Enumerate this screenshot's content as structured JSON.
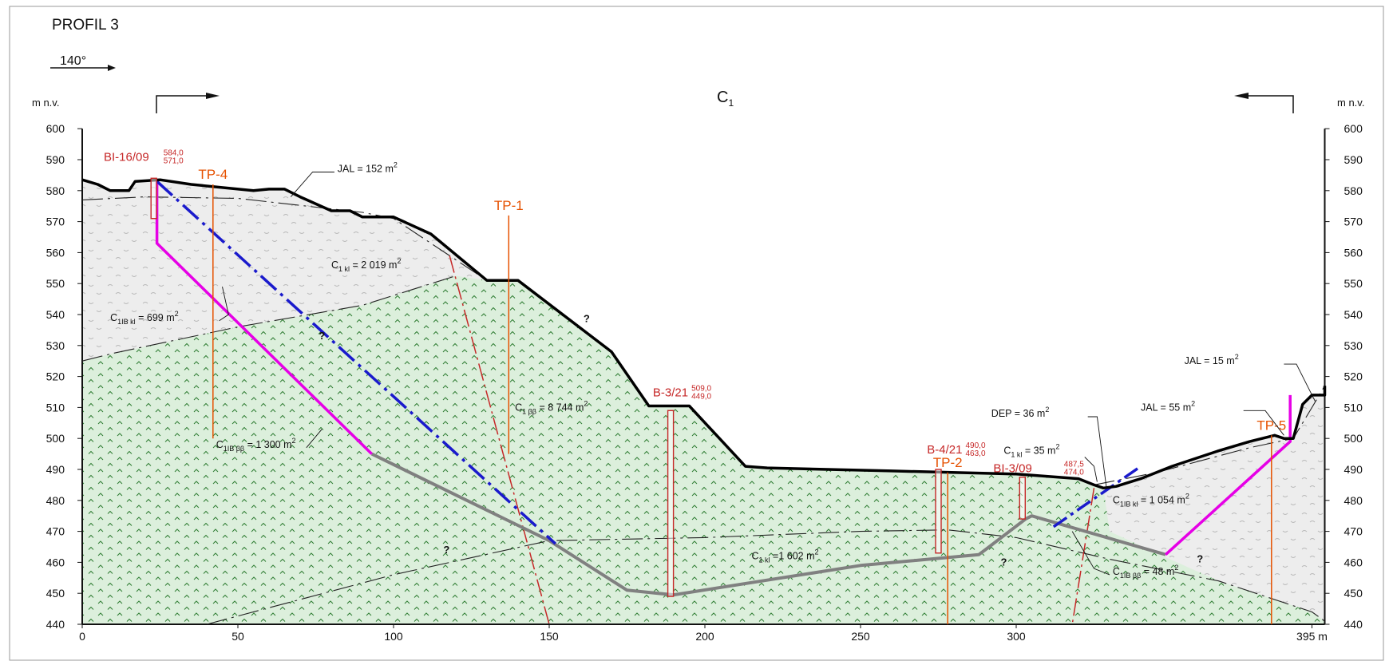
{
  "title": "PROFIL 3",
  "azimuth": "140°",
  "section_label": "C",
  "section_label_sub": "1",
  "y_unit_left": "m n.v.",
  "y_unit_right": "m n.v.",
  "x_unit": "m",
  "y_ticks": [
    440,
    450,
    460,
    470,
    480,
    490,
    500,
    510,
    520,
    530,
    540,
    550,
    560,
    570,
    580,
    590,
    600
  ],
  "x_ticks": [
    0,
    50,
    100,
    150,
    200,
    250,
    300,
    395
  ],
  "x_end_label": "395 m",
  "colors": {
    "terrain": "#000000",
    "weathered_fill": "#eeeeee",
    "rock_fill": "#d8ecd8",
    "rock_symbol": "#2e7d32",
    "boring": "#c62828",
    "test_pit": "#e65100",
    "fault": "#c62828",
    "groundwater": "#1a1acc",
    "slip_surface": "#e600e6",
    "base_surface": "#808080"
  },
  "chart_data": {
    "type": "cross-section",
    "xlim": [
      0,
      395
    ],
    "ylim": [
      440,
      600
    ],
    "terrain": [
      [
        0,
        583.5
      ],
      [
        5,
        582
      ],
      [
        9,
        580
      ],
      [
        15,
        580
      ],
      [
        17,
        583
      ],
      [
        25,
        583.5
      ],
      [
        35,
        582
      ],
      [
        55,
        580
      ],
      [
        60,
        580.5
      ],
      [
        65,
        580.5
      ],
      [
        70,
        578
      ],
      [
        80,
        573.5
      ],
      [
        86,
        573.5
      ],
      [
        90,
        571.5
      ],
      [
        100,
        571.5
      ],
      [
        112,
        566
      ],
      [
        130,
        551
      ],
      [
        140,
        551
      ],
      [
        170,
        528
      ],
      [
        182,
        510.5
      ],
      [
        195,
        510.5
      ],
      [
        213,
        491
      ],
      [
        220,
        490.5
      ],
      [
        260,
        489.5
      ],
      [
        300,
        488.5
      ],
      [
        320,
        487
      ],
      [
        325,
        485
      ],
      [
        328,
        484
      ],
      [
        332,
        484.5
      ],
      [
        340,
        487
      ],
      [
        345,
        489
      ],
      [
        350,
        491
      ],
      [
        365,
        496
      ],
      [
        375,
        499
      ],
      [
        383,
        501
      ],
      [
        386,
        500
      ],
      [
        389,
        500
      ],
      [
        392,
        511
      ],
      [
        395,
        514
      ],
      [
        400,
        514
      ],
      [
        405,
        517
      ]
    ],
    "boundary_upper": [
      [
        0,
        577
      ],
      [
        20,
        578
      ],
      [
        50,
        577.5
      ],
      [
        90,
        573
      ],
      [
        100,
        571
      ],
      [
        130,
        551
      ]
    ],
    "boundary_lower": [
      [
        0,
        525
      ],
      [
        10,
        527.5
      ],
      [
        50,
        536
      ],
      [
        90,
        543
      ],
      [
        120,
        552.5
      ]
    ],
    "boundary_base_left": [
      [
        40,
        440
      ],
      [
        100,
        456
      ],
      [
        150,
        467
      ],
      [
        200,
        468
      ],
      [
        250,
        470
      ],
      [
        278,
        470.5
      ],
      [
        300,
        468
      ],
      [
        330,
        461
      ],
      [
        365,
        454
      ],
      [
        395,
        444
      ],
      [
        400,
        441
      ]
    ],
    "boundary_right_upper": [
      [
        325,
        485
      ],
      [
        345,
        489
      ],
      [
        375,
        497
      ],
      [
        389,
        500
      ],
      [
        395,
        510
      ],
      [
        405,
        517
      ]
    ],
    "rock_region": [
      [
        0,
        525
      ],
      [
        10,
        527.5
      ],
      [
        50,
        536
      ],
      [
        90,
        543
      ],
      [
        120,
        552.5
      ],
      [
        130,
        551
      ],
      [
        140,
        551
      ],
      [
        170,
        528
      ],
      [
        182,
        510.5
      ],
      [
        195,
        510.5
      ],
      [
        213,
        491
      ],
      [
        220,
        490.5
      ],
      [
        260,
        489.5
      ],
      [
        300,
        488.5
      ],
      [
        320,
        487
      ],
      [
        325,
        485
      ],
      [
        328,
        484
      ],
      [
        330,
        470
      ],
      [
        345,
        463
      ],
      [
        365,
        454
      ],
      [
        380,
        449
      ],
      [
        395,
        444
      ],
      [
        400,
        441
      ],
      [
        400,
        440
      ],
      [
        40,
        440
      ],
      [
        0,
        440
      ]
    ],
    "slip_surface_main": [
      [
        24,
        583
      ],
      [
        24,
        563
      ],
      [
        93,
        495
      ]
    ],
    "slip_surface_right": [
      [
        348,
        462.5
      ],
      [
        388,
        499
      ],
      [
        388,
        514
      ]
    ],
    "base_surface": [
      [
        93,
        495
      ],
      [
        150,
        467
      ],
      [
        175,
        451
      ],
      [
        185,
        450
      ],
      [
        190,
        449.5
      ],
      [
        250,
        459
      ],
      [
        288,
        462.5
      ],
      [
        290,
        464
      ],
      [
        303,
        474
      ],
      [
        305,
        475
      ],
      [
        348,
        462.5
      ]
    ],
    "groundwater_main": [
      [
        24,
        583
      ],
      [
        152,
        466
      ]
    ],
    "groundwater_right": [
      [
        312,
        471.5
      ],
      [
        340,
        491
      ]
    ],
    "fault_1": [
      [
        118,
        559
      ],
      [
        150,
        440
      ]
    ],
    "fault_2": [
      [
        325,
        484
      ],
      [
        318,
        440
      ]
    ],
    "borings": [
      {
        "name": "BI-16/09",
        "top": "584,0",
        "bottom": "571,0",
        "x": 23,
        "y_top": 584,
        "y_bottom": 571
      },
      {
        "name": "B-3/21",
        "top": "509,0",
        "bottom": "449,0",
        "x": 189,
        "y_top": 509,
        "y_bottom": 449
      },
      {
        "name": "B-4/21",
        "top": "490,0",
        "bottom": "463,0",
        "x": 275,
        "y_top": 490,
        "y_bottom": 463
      },
      {
        "name": "BI-3/09",
        "top": "487,5",
        "bottom": "474,0",
        "x": 302,
        "y_top": 487.5,
        "y_bottom": 474
      }
    ],
    "test_pits": [
      {
        "name": "TP-4",
        "x": 42,
        "y_top": 582,
        "y_bottom": 500
      },
      {
        "name": "TP-1",
        "x": 137,
        "y_top": 572,
        "y_bottom": 495
      },
      {
        "name": "TP-2",
        "x": 278,
        "y_top": 489,
        "y_bottom": 440
      },
      {
        "name": "TP-5",
        "x": 382,
        "y_top": 501,
        "y_bottom": 440
      }
    ],
    "annotations": [
      {
        "main": "JAL = 152 m",
        "sub": "",
        "sup": "2",
        "tx": 82,
        "ty": 586,
        "lx": [
          [
            81,
            586
          ],
          [
            74,
            586
          ],
          [
            67,
            578
          ]
        ]
      },
      {
        "main": "C",
        "sub": "1 kl",
        "tail": " = 2 019 m",
        "sup": "2",
        "tx": 80,
        "ty": 555,
        "lx": null
      },
      {
        "main": "C",
        "sub": "1IB kl",
        "tail": " = 699 m",
        "sup": "2",
        "tx": 9,
        "ty": 538,
        "lx": [
          [
            44,
            538
          ],
          [
            47,
            540
          ],
          [
            45,
            549
          ]
        ]
      },
      {
        "main": "C",
        "sub": "1 ββ",
        "tail": " = 8 744 m",
        "sup": "2",
        "tx": 139,
        "ty": 509,
        "lx": null
      },
      {
        "main": "C",
        "sub": "1IB ββ",
        "tail": " = 1 300 m",
        "sup": "2",
        "tx": 43,
        "ty": 497,
        "lx": [
          [
            72,
            497
          ],
          [
            77,
            503
          ]
        ]
      },
      {
        "main": "C",
        "sub": "1 kl",
        "tail": " =1 602 m",
        "sup": "2",
        "tx": 215,
        "ty": 461,
        "lx": null
      },
      {
        "main": "JAL = 15 m",
        "sub": "",
        "sup": "2",
        "tx": 354,
        "ty": 524,
        "lx": [
          [
            386,
            524
          ],
          [
            390,
            524
          ],
          [
            396,
            512
          ]
        ]
      },
      {
        "main": "JAL = 55 m",
        "sub": "",
        "sup": "2",
        "tx": 340,
        "ty": 509,
        "lx": [
          [
            373,
            509
          ],
          [
            380,
            509
          ],
          [
            386,
            501
          ]
        ]
      },
      {
        "main": "DEP = 36 m",
        "sub": "",
        "sup": "2",
        "tx": 292,
        "ty": 507,
        "lx": [
          [
            323,
            507
          ],
          [
            326,
            507
          ],
          [
            329,
            484
          ]
        ]
      },
      {
        "main": "C",
        "sub": "1 kl",
        "tail": " = 35 m",
        "sup": "2",
        "tx": 296,
        "ty": 495,
        "lx": [
          [
            322,
            494
          ],
          [
            325,
            491
          ],
          [
            326,
            486
          ]
        ]
      },
      {
        "main": "C",
        "sub": "1IB kl",
        "tail": " = 1 054 m",
        "sup": "2",
        "tx": 331,
        "ty": 479,
        "lx": null
      },
      {
        "main": "C",
        "sub": "1IB ββ",
        "tail": " = 48 m",
        "sup": "2",
        "tx": 331,
        "ty": 456,
        "lx": [
          [
            330,
            456
          ],
          [
            325,
            458
          ],
          [
            318,
            470
          ]
        ]
      }
    ],
    "question_marks": [
      [
        161,
        537.5
      ],
      [
        76,
        532
      ],
      [
        116,
        463
      ],
      [
        295,
        459
      ],
      [
        358,
        460
      ]
    ]
  }
}
